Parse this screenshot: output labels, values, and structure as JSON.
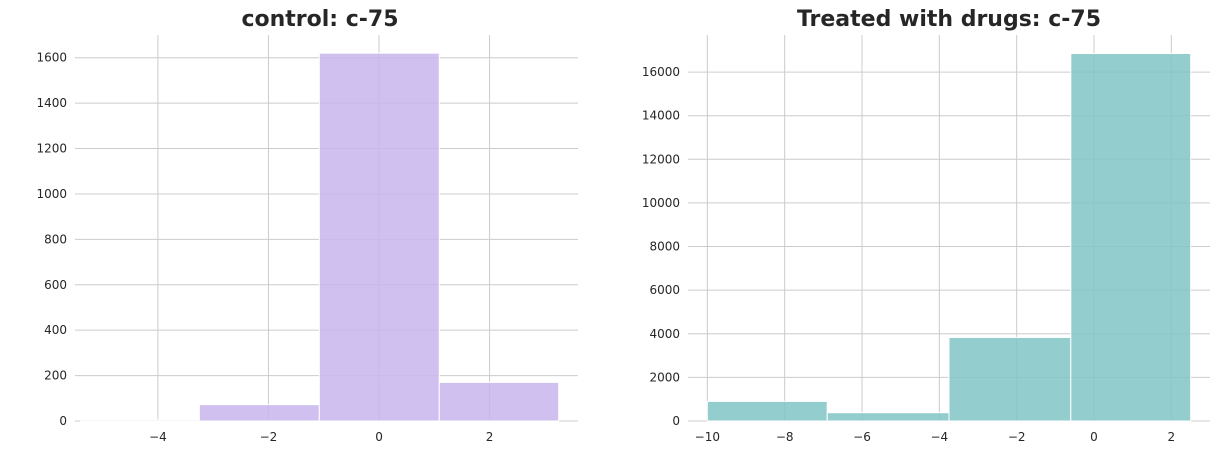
{
  "chart_data": [
    {
      "type": "bar",
      "title": "control: c-75",
      "xlabel": "",
      "ylabel": "",
      "xlim": [
        -5.5,
        3.6
      ],
      "ylim": [
        0,
        1700
      ],
      "grid": true,
      "color": "#c7b5ec",
      "bins": [
        {
          "x0": -5.4,
          "x1": -3.25,
          "value": 5
        },
        {
          "x0": -3.25,
          "x1": -1.08,
          "value": 72
        },
        {
          "x0": -1.08,
          "x1": 1.09,
          "value": 1620
        },
        {
          "x0": 1.09,
          "x1": 3.25,
          "value": 170
        }
      ],
      "xticks": [
        {
          "value": -4,
          "label": "−4"
        },
        {
          "value": -2,
          "label": "−2"
        },
        {
          "value": 0,
          "label": "0"
        },
        {
          "value": 2,
          "label": "2"
        }
      ],
      "yticks": [
        {
          "value": 0,
          "label": "0"
        },
        {
          "value": 200,
          "label": "200"
        },
        {
          "value": 400,
          "label": "400"
        },
        {
          "value": 600,
          "label": "600"
        },
        {
          "value": 800,
          "label": "800"
        },
        {
          "value": 1000,
          "label": "1000"
        },
        {
          "value": 1200,
          "label": "1200"
        },
        {
          "value": 1400,
          "label": "1400"
        },
        {
          "value": 1600,
          "label": "1600"
        }
      ]
    },
    {
      "type": "bar",
      "title": "Treated with drugs: c-75",
      "xlabel": "",
      "ylabel": "",
      "xlim": [
        -10.5,
        3.0
      ],
      "ylim": [
        0,
        17700
      ],
      "grid": true,
      "color": "#80c4c4",
      "bins": [
        {
          "x0": -10.0,
          "x1": -6.9,
          "value": 900
        },
        {
          "x0": -6.9,
          "x1": -3.75,
          "value": 380
        },
        {
          "x0": -3.75,
          "x1": -0.6,
          "value": 3830
        },
        {
          "x0": -0.6,
          "x1": 2.5,
          "value": 16850
        }
      ],
      "xticks": [
        {
          "value": -10,
          "label": "−10"
        },
        {
          "value": -8,
          "label": "−8"
        },
        {
          "value": -6,
          "label": "−6"
        },
        {
          "value": -4,
          "label": "−4"
        },
        {
          "value": -2,
          "label": "−2"
        },
        {
          "value": 0,
          "label": "0"
        },
        {
          "value": 2,
          "label": "2"
        }
      ],
      "yticks": [
        {
          "value": 0,
          "label": "0"
        },
        {
          "value": 2000,
          "label": "2000"
        },
        {
          "value": 4000,
          "label": "4000"
        },
        {
          "value": 6000,
          "label": "6000"
        },
        {
          "value": 8000,
          "label": "8000"
        },
        {
          "value": 10000,
          "label": "10000"
        },
        {
          "value": 12000,
          "label": "12000"
        },
        {
          "value": 14000,
          "label": "14000"
        },
        {
          "value": 16000,
          "label": "16000"
        }
      ]
    }
  ]
}
